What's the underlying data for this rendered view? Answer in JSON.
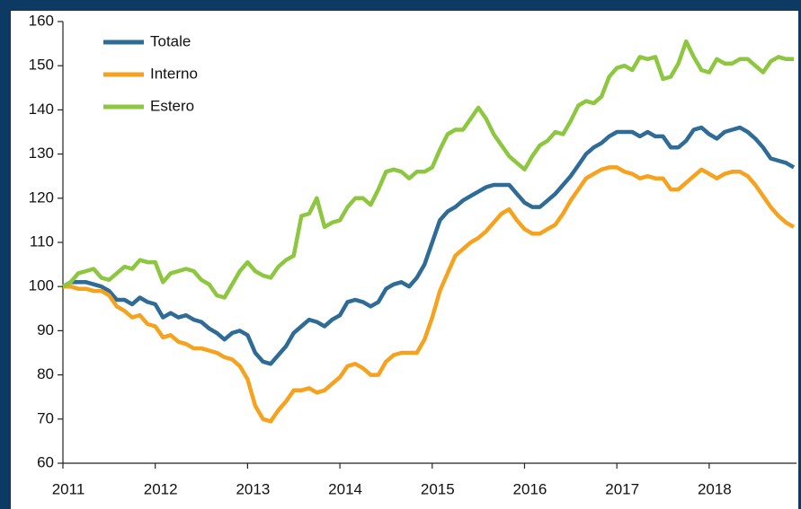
{
  "chart_data": {
    "type": "line",
    "categories": [
      "2011",
      null,
      null,
      null,
      null,
      null,
      null,
      null,
      null,
      null,
      null,
      null,
      "2012",
      null,
      null,
      null,
      null,
      null,
      null,
      null,
      null,
      null,
      null,
      null,
      "2013",
      null,
      null,
      null,
      null,
      null,
      null,
      null,
      null,
      null,
      null,
      null,
      "2014",
      null,
      null,
      null,
      null,
      null,
      null,
      null,
      null,
      null,
      null,
      null,
      "2015",
      null,
      null,
      null,
      null,
      null,
      null,
      null,
      null,
      null,
      null,
      null,
      "2016",
      null,
      null,
      null,
      null,
      null,
      null,
      null,
      null,
      null,
      null,
      null,
      "2017",
      null,
      null,
      null,
      null,
      null,
      null,
      null,
      null,
      null,
      null,
      null,
      "2018",
      null,
      null,
      null,
      null,
      null,
      null,
      null,
      null,
      null,
      null,
      null
    ],
    "series": [
      {
        "name": "Totale",
        "color": "#2e6b96",
        "values": [
          100,
          101,
          101,
          101,
          100.5,
          100,
          99,
          97,
          97,
          96,
          97.5,
          96.5,
          96,
          93,
          94,
          93,
          93.5,
          92.5,
          92,
          90.5,
          89.5,
          88,
          89.5,
          90,
          89,
          85,
          83,
          82.5,
          84.5,
          86.5,
          89.5,
          91,
          92.5,
          92,
          91,
          92.5,
          93.5,
          96.5,
          97,
          96.5,
          95.5,
          96.5,
          99.5,
          100.5,
          101,
          100,
          102,
          105,
          110,
          115,
          117,
          118,
          119.5,
          120.5,
          121.5,
          122.5,
          123,
          123,
          123,
          121,
          119,
          118,
          118,
          119.5,
          121,
          123,
          125,
          127.5,
          130,
          131.5,
          132.5,
          134,
          135,
          135,
          135,
          134,
          135,
          134,
          134,
          131.5,
          131.5,
          133,
          135.5,
          136,
          134.5,
          133.5,
          135,
          135.5,
          136,
          135,
          133.5,
          131.5,
          129,
          128.5,
          128,
          127
        ]
      },
      {
        "name": "Interno",
        "color": "#f5a21f",
        "values": [
          100,
          100,
          99.5,
          99.5,
          99,
          99,
          98,
          95.5,
          94.5,
          93,
          93.5,
          91.5,
          91,
          88.5,
          89,
          87.5,
          87,
          86,
          86,
          85.5,
          85,
          84,
          83.5,
          82,
          79,
          73,
          70,
          69.5,
          72,
          74,
          76.5,
          76.5,
          77,
          76,
          76.5,
          78,
          79.5,
          82,
          82.5,
          81.5,
          80,
          80,
          83,
          84.5,
          85,
          85,
          85,
          88,
          93,
          99,
          103,
          107,
          108.5,
          110,
          111,
          112.5,
          114.5,
          116.5,
          117.5,
          115,
          113,
          112,
          112,
          113,
          114,
          116.5,
          119.5,
          122,
          124.5,
          125.5,
          126.5,
          127,
          127,
          126,
          125.5,
          124.5,
          125,
          124.5,
          124.5,
          122,
          122,
          123.5,
          125,
          126.5,
          125.5,
          124.5,
          125.5,
          126,
          126,
          125,
          123,
          120.5,
          118,
          116,
          114.5,
          113.5
        ]
      },
      {
        "name": "Estero",
        "color": "#8dc63f",
        "values": [
          100,
          101,
          103,
          103.5,
          104,
          102,
          101.5,
          103,
          104.5,
          104,
          106,
          105.5,
          105.5,
          101,
          103,
          103.5,
          104,
          103.5,
          101.5,
          100.5,
          98,
          97.5,
          100.5,
          103.5,
          105.5,
          103.5,
          102.5,
          102,
          104.5,
          106,
          107,
          116,
          116.5,
          120,
          113.5,
          114.5,
          115,
          118,
          120,
          120,
          118.5,
          122,
          126,
          126.5,
          126,
          124.5,
          126,
          126,
          127,
          131,
          134.5,
          135.5,
          135.5,
          138,
          140.5,
          138,
          134.5,
          132,
          129.5,
          128,
          126.5,
          129.5,
          132,
          133,
          135,
          134.5,
          137.5,
          141,
          142,
          141.5,
          143,
          147.5,
          149.5,
          150,
          149,
          152,
          151.5,
          152,
          147,
          147.5,
          150.5,
          155.5,
          152,
          149,
          148.5,
          151.5,
          150.5,
          150.5,
          151.5,
          151.5,
          150,
          148.5,
          151,
          152,
          151.5,
          151.5
        ]
      }
    ],
    "ylim": [
      60,
      160
    ],
    "yticks": [
      60,
      70,
      80,
      90,
      100,
      110,
      120,
      130,
      140,
      150,
      160
    ],
    "legend": "upper left"
  }
}
